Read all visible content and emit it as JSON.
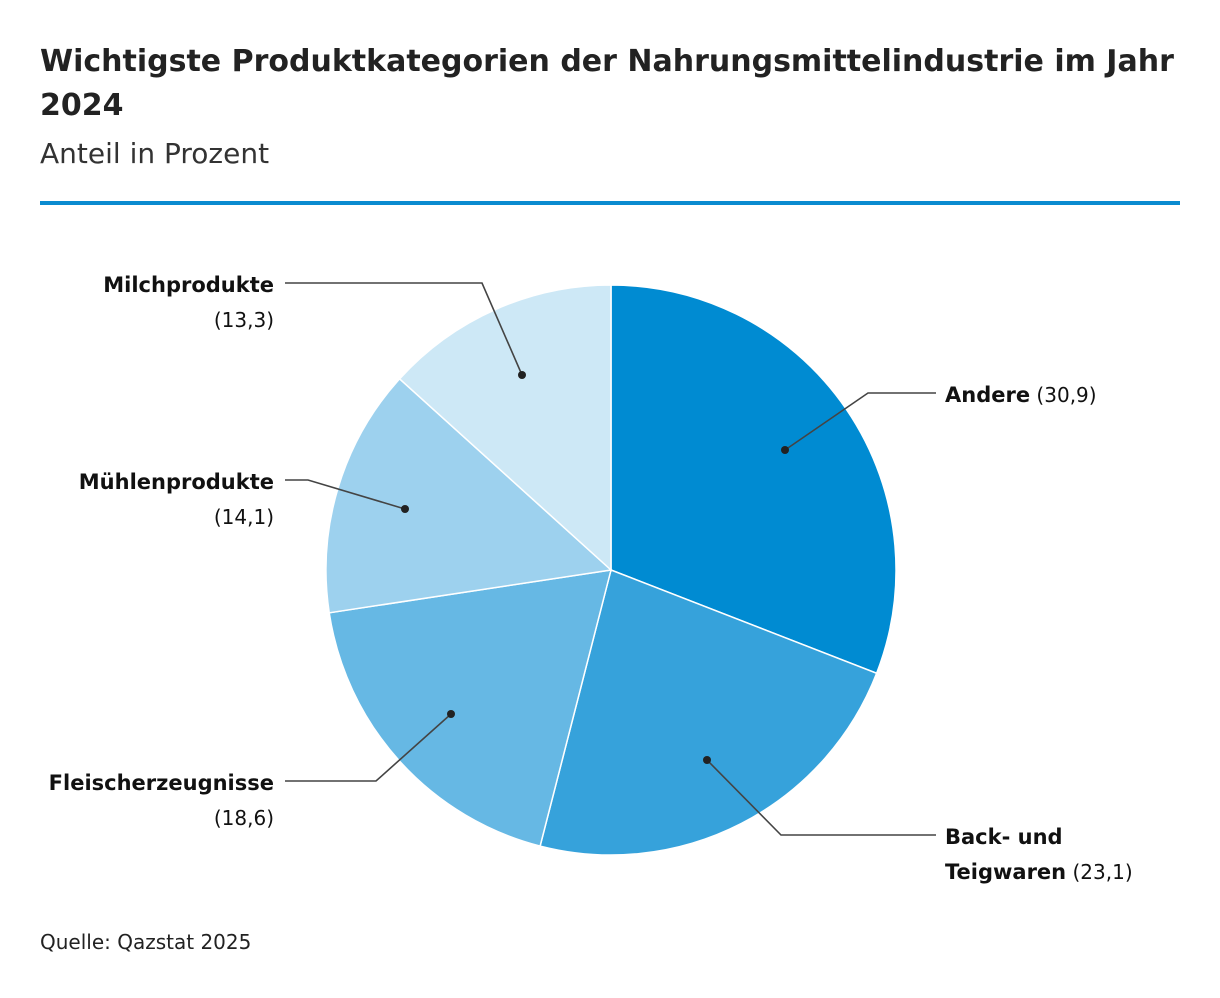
{
  "header": {
    "title": "Wichtigste Produktkategorien der Nahrungsmittelindustrie im Jahr 2024",
    "subtitle": "Anteil in Prozent",
    "rule_color": "#0a8bd0"
  },
  "footer": {
    "source": "Quelle: Qazstat 2025"
  },
  "chart_data": {
    "type": "pie",
    "title": "Wichtigste Produktkategorien der Nahrungsmittelindustrie im Jahr 2024",
    "subtitle": "Anteil in Prozent",
    "slices": [
      {
        "label": "Andere",
        "value_label": "(30,9)",
        "value": 30.9,
        "color": "#008bd2"
      },
      {
        "label": "Back- und Teigwaren",
        "label_lines": [
          "Back- und",
          "Teigwaren"
        ],
        "value_label": "(23,1)",
        "value": 23.1,
        "color": "#36a2db"
      },
      {
        "label": "Fleischerzeugnisse",
        "value_label": "(18,6)",
        "value": 18.6,
        "color": "#66b8e4"
      },
      {
        "label": "Mühlenprodukte",
        "value_label": "(14,1)",
        "value": 14.1,
        "color": "#9dd1ee"
      },
      {
        "label": "Milchprodukte",
        "value_label": "(13,3)",
        "value": 13.3,
        "color": "#cde8f6"
      }
    ]
  }
}
